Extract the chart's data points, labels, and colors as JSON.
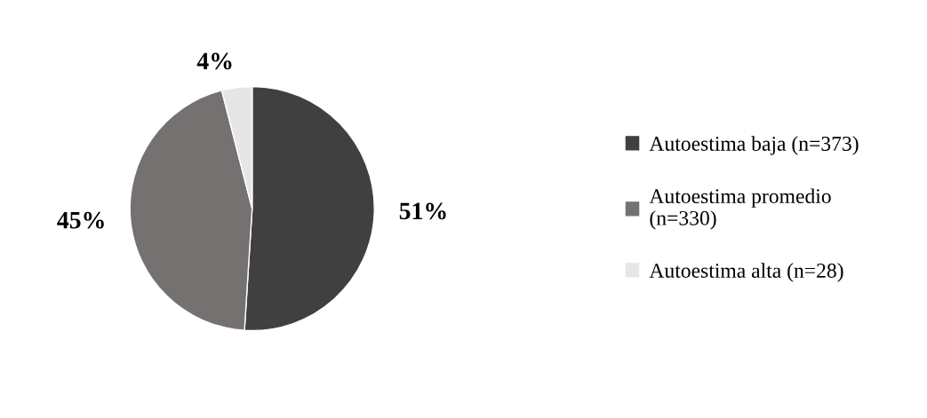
{
  "chart_data": {
    "type": "pie",
    "categories": [
      "Autoestima baja (n=373)",
      "Autoestima promedio\n(n=330)",
      "Autoestima alta (n=28)"
    ],
    "values": [
      51,
      45,
      4
    ],
    "value_labels": [
      "51%",
      "45%",
      "4%"
    ],
    "colors": [
      "#404040",
      "#767171",
      "#e7e6e6"
    ],
    "legend": "right"
  }
}
